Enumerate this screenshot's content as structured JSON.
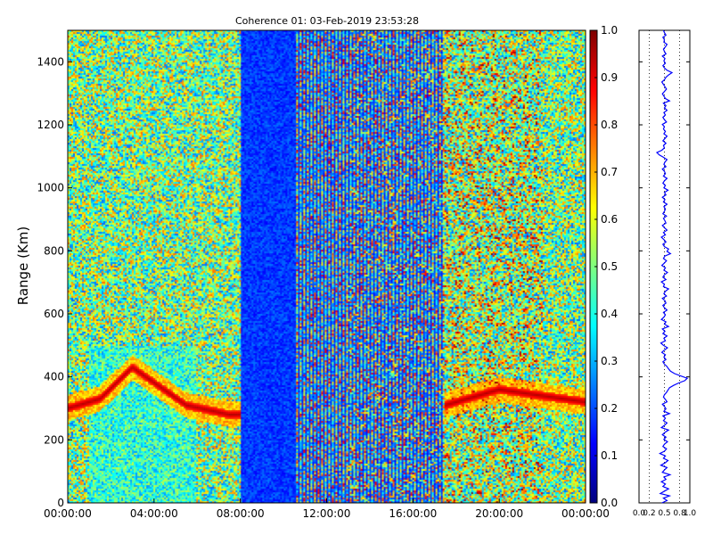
{
  "chart_data": [
    {
      "type": "heatmap",
      "title": "Coherence 01: 03-Feb-2019 23:53:28",
      "xlabel": "",
      "ylabel": "Range (Km)",
      "x_ticks": [
        "00:00:00",
        "04:00:00",
        "08:00:00",
        "12:00:00",
        "16:00:00",
        "20:00:00",
        "00:00:00"
      ],
      "x_range_hours": [
        0,
        24
      ],
      "y_ticks": [
        "0",
        "200",
        "400",
        "600",
        "800",
        "1000",
        "1200",
        "1400"
      ],
      "y_range": [
        0,
        1500
      ],
      "colormap": "jet",
      "colorbar": {
        "range": [
          0,
          1
        ],
        "ticks": [
          "0.0",
          "0.1",
          "0.2",
          "0.3",
          "0.4",
          "0.5",
          "0.6",
          "0.7",
          "0.8",
          "0.9",
          "1.0"
        ]
      },
      "features": {
        "background_level": 0.5,
        "low_coherence_band_hours": [
          8,
          17.5
        ],
        "low_coherence_level": 0.12,
        "strong_layer_km": [
          [
            0,
            300
          ],
          [
            1.5,
            330
          ],
          [
            3,
            430
          ],
          [
            5.5,
            310
          ],
          [
            7.5,
            280
          ],
          [
            17,
            300
          ],
          [
            20,
            360
          ],
          [
            24,
            320
          ]
        ],
        "strong_layer_level": 0.95
      },
      "grid": false
    },
    {
      "type": "line",
      "title": "",
      "xlabel": "",
      "ylabel": "",
      "x_ticks": [
        "0.0",
        "0.2",
        "0.5",
        "0.8",
        "1.0"
      ],
      "x_range": [
        0,
        1
      ],
      "y_range": [
        0,
        1500
      ],
      "grid": true,
      "series": [
        {
          "color": "#0000ff",
          "points_range_km": [
            0,
            1500
          ],
          "values": [
            0.45,
            0.55,
            0.48,
            0.6,
            0.42,
            0.5,
            0.58,
            0.47,
            0.52,
            0.44,
            0.53,
            0.49,
            0.61,
            0.46,
            0.5,
            0.55,
            0.43,
            0.51,
            0.57,
            0.48,
            0.52,
            0.41,
            0.5,
            0.54,
            0.47,
            0.5,
            0.56,
            0.49,
            0.53,
            0.46,
            0.51,
            0.58,
            0.44,
            0.5,
            0.55,
            0.48,
            0.52,
            0.47,
            0.6,
            0.49,
            0.53,
            0.5,
            0.46,
            0.55,
            0.52,
            0.48,
            0.5,
            0.54,
            0.57,
            0.6,
            0.68,
            0.78,
            0.9,
            0.95,
            0.82,
            0.7,
            0.62,
            0.58,
            0.55,
            0.5,
            0.47,
            0.53,
            0.49,
            0.52,
            0.45,
            0.5,
            0.56,
            0.48,
            0.43,
            0.52,
            0.49,
            0.55,
            0.47,
            0.51,
            0.46,
            0.58,
            0.5,
            0.53,
            0.44,
            0.49,
            0.52,
            0.48,
            0.55,
            0.5,
            0.47,
            0.53,
            0.51,
            0.46,
            0.54,
            0.49,
            0.52,
            0.58,
            0.48,
            0.5,
            0.44,
            0.53,
            0.47,
            0.5,
            0.56,
            0.49,
            0.52,
            0.45,
            0.5,
            0.54,
            0.48,
            0.51,
            0.62,
            0.55,
            0.58,
            0.5,
            0.47,
            0.53,
            0.49,
            0.44,
            0.52,
            0.48,
            0.55,
            0.5,
            0.46,
            0.53,
            0.51,
            0.48,
            0.54,
            0.47,
            0.5,
            0.52,
            0.49,
            0.55,
            0.48,
            0.51,
            0.46,
            0.53,
            0.5,
            0.57,
            0.49,
            0.52,
            0.47,
            0.5,
            0.55,
            0.48,
            0.52,
            0.5,
            0.46,
            0.53,
            0.49,
            0.51,
            0.55,
            0.48,
            0.4,
            0.35,
            0.45,
            0.5,
            0.48,
            0.53,
            0.47,
            0.51,
            0.55,
            0.49,
            0.52,
            0.48,
            0.5,
            0.46,
            0.54,
            0.5,
            0.47,
            0.52,
            0.49,
            0.55,
            0.5,
            0.53,
            0.48,
            0.6,
            0.52,
            0.49,
            0.46,
            0.5,
            0.54,
            0.51,
            0.48,
            0.45,
            0.5,
            0.53,
            0.58,
            0.65,
            0.55,
            0.5,
            0.47,
            0.52,
            0.49,
            0.51,
            0.46,
            0.53,
            0.5,
            0.48,
            0.52,
            0.55,
            0.49,
            0.5,
            0.47,
            0.53,
            0.5,
            0.48
          ]
        }
      ]
    }
  ]
}
